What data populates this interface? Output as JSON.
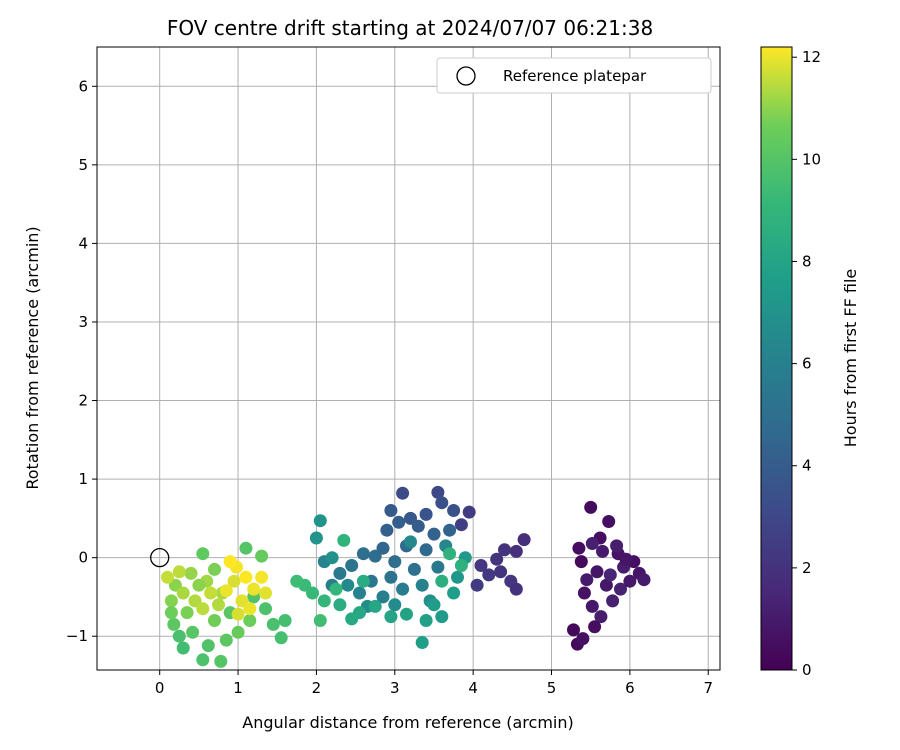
{
  "chart_data": {
    "type": "scatter",
    "title": "FOV centre drift starting at 2024/07/07 06:21:38",
    "xlabel": "Angular distance from reference (arcmin)",
    "ylabel": "Rotation from reference (arcmin)",
    "xlim": [
      -0.8,
      7.15
    ],
    "ylim": [
      -1.43,
      6.5
    ],
    "x_ticks": [
      0,
      1,
      2,
      3,
      4,
      5,
      6,
      7
    ],
    "y_ticks": [
      -1,
      0,
      1,
      2,
      3,
      4,
      5,
      6
    ],
    "grid": true,
    "legend": {
      "position": "top-right",
      "entries": [
        "Reference platepar"
      ]
    },
    "reference_point": {
      "x": 0,
      "y": 0,
      "label": "Reference platepar"
    },
    "colorbar": {
      "label": "Hours from first FF file",
      "range": [
        0,
        12.2
      ],
      "ticks": [
        0,
        2,
        4,
        6,
        8,
        10,
        12
      ],
      "colormap": "viridis"
    },
    "series": [
      {
        "color_value": "hours",
        "points": [
          [
            5.38,
            -0.05,
            0.3
          ],
          [
            5.5,
            0.64,
            0.4
          ],
          [
            5.62,
            0.25,
            0.5
          ],
          [
            5.73,
            0.46,
            0.6
          ],
          [
            5.85,
            0.05,
            0.7
          ],
          [
            5.58,
            -0.18,
            0.8
          ],
          [
            5.7,
            -0.35,
            0.9
          ],
          [
            5.45,
            -0.28,
            1.0
          ],
          [
            5.92,
            -0.12,
            1.1
          ],
          [
            6.05,
            -0.05,
            0.6
          ],
          [
            6.12,
            -0.2,
            0.8
          ],
          [
            6.18,
            -0.28,
            1.0
          ],
          [
            5.35,
            0.12,
            0.5
          ],
          [
            5.42,
            -0.45,
            0.7
          ],
          [
            5.52,
            -0.62,
            0.9
          ],
          [
            5.63,
            -0.75,
            1.1
          ],
          [
            5.78,
            -0.55,
            1.2
          ],
          [
            5.88,
            -0.4,
            1.3
          ],
          [
            5.28,
            -0.92,
            0.3
          ],
          [
            5.33,
            -1.1,
            0.4
          ],
          [
            5.55,
            -0.88,
            0.5
          ],
          [
            5.4,
            -1.03,
            0.6
          ],
          [
            5.95,
            -0.02,
            0.8
          ],
          [
            5.65,
            0.08,
            1.0
          ],
          [
            5.52,
            0.18,
            1.2
          ],
          [
            5.75,
            -0.22,
            1.4
          ],
          [
            5.83,
            0.15,
            1.1
          ],
          [
            6.0,
            -0.3,
            0.9
          ],
          [
            4.65,
            0.23,
            1.8
          ],
          [
            4.55,
            0.08,
            1.9
          ],
          [
            4.4,
            0.1,
            2.0
          ],
          [
            4.3,
            -0.02,
            2.1
          ],
          [
            4.48,
            -0.3,
            2.2
          ],
          [
            4.55,
            -0.4,
            2.0
          ],
          [
            4.2,
            -0.22,
            2.3
          ],
          [
            4.05,
            -0.35,
            2.4
          ],
          [
            3.95,
            0.58,
            2.5
          ],
          [
            3.85,
            0.42,
            2.6
          ],
          [
            4.1,
            -0.1,
            2.2
          ],
          [
            4.35,
            -0.18,
            2.1
          ],
          [
            3.55,
            0.83,
            3.0
          ],
          [
            3.1,
            0.82,
            3.2
          ],
          [
            3.6,
            0.7,
            3.4
          ],
          [
            3.75,
            0.6,
            3.5
          ],
          [
            3.4,
            0.55,
            3.6
          ],
          [
            3.2,
            0.5,
            3.8
          ],
          [
            2.95,
            0.6,
            3.9
          ],
          [
            3.3,
            0.4,
            4.0
          ],
          [
            3.05,
            0.45,
            4.1
          ],
          [
            2.9,
            0.35,
            4.2
          ],
          [
            3.5,
            0.3,
            4.3
          ],
          [
            3.7,
            0.35,
            4.4
          ],
          [
            2.85,
            0.12,
            4.5
          ],
          [
            3.15,
            0.15,
            4.6
          ],
          [
            3.4,
            0.1,
            4.7
          ],
          [
            2.75,
            0.02,
            4.8
          ],
          [
            3.0,
            -0.05,
            4.9
          ],
          [
            2.6,
            0.05,
            5.0
          ],
          [
            3.25,
            -0.15,
            5.1
          ],
          [
            2.95,
            -0.25,
            5.2
          ],
          [
            2.45,
            -0.1,
            5.3
          ],
          [
            2.7,
            -0.3,
            5.4
          ],
          [
            3.55,
            -0.12,
            5.5
          ],
          [
            2.3,
            -0.2,
            5.6
          ],
          [
            3.1,
            -0.4,
            5.7
          ],
          [
            2.2,
            -0.35,
            5.8
          ],
          [
            2.85,
            -0.5,
            5.9
          ],
          [
            3.35,
            -0.35,
            6.0
          ],
          [
            2.55,
            -0.45,
            6.1
          ],
          [
            2.1,
            -0.05,
            6.2
          ],
          [
            3.65,
            0.15,
            6.3
          ],
          [
            3.2,
            0.2,
            6.4
          ],
          [
            2.4,
            -0.35,
            6.5
          ],
          [
            3.0,
            -0.6,
            6.6
          ],
          [
            2.65,
            -0.62,
            6.7
          ],
          [
            3.45,
            -0.55,
            6.8
          ],
          [
            2.2,
            0.0,
            6.9
          ],
          [
            2.05,
            0.47,
            7.0
          ],
          [
            2.0,
            0.25,
            7.1
          ],
          [
            3.8,
            -0.25,
            7.2
          ],
          [
            3.9,
            0.0,
            7.3
          ],
          [
            3.6,
            -0.75,
            7.4
          ],
          [
            3.5,
            -0.6,
            7.5
          ],
          [
            3.75,
            -0.45,
            7.6
          ],
          [
            3.35,
            -1.08,
            7.7
          ],
          [
            3.4,
            -0.8,
            7.8
          ],
          [
            3.15,
            -0.72,
            7.9
          ],
          [
            2.95,
            -0.75,
            8.0
          ],
          [
            2.75,
            -0.62,
            8.1
          ],
          [
            2.55,
            -0.7,
            8.2
          ],
          [
            2.45,
            -0.78,
            8.3
          ],
          [
            2.6,
            -0.3,
            8.4
          ],
          [
            2.3,
            -0.6,
            8.5
          ],
          [
            3.6,
            -0.3,
            8.6
          ],
          [
            3.85,
            -0.1,
            8.7
          ],
          [
            3.7,
            0.05,
            8.8
          ],
          [
            2.35,
            0.22,
            8.9
          ],
          [
            2.25,
            -0.4,
            9.0
          ],
          [
            2.1,
            -0.55,
            9.1
          ],
          [
            1.95,
            -0.45,
            9.2
          ],
          [
            1.85,
            -0.35,
            9.3
          ],
          [
            1.75,
            -0.3,
            9.4
          ],
          [
            2.05,
            -0.8,
            9.5
          ],
          [
            1.6,
            -0.8,
            9.6
          ],
          [
            1.55,
            -1.02,
            9.6
          ],
          [
            1.45,
            -0.85,
            9.7
          ],
          [
            1.35,
            -0.65,
            9.8
          ],
          [
            1.2,
            -0.5,
            9.9
          ],
          [
            1.1,
            0.12,
            10.0
          ],
          [
            0.9,
            -0.7,
            10.1
          ],
          [
            0.85,
            -1.05,
            10.2
          ],
          [
            0.78,
            -1.32,
            10.0
          ],
          [
            0.55,
            -1.3,
            9.8
          ],
          [
            0.3,
            -1.15,
            9.5
          ],
          [
            0.25,
            -1.0,
            9.7
          ],
          [
            0.62,
            -1.12,
            9.9
          ],
          [
            0.42,
            -0.95,
            10.1
          ],
          [
            0.18,
            -0.85,
            10.2
          ],
          [
            0.55,
            0.05,
            10.3
          ],
          [
            1.3,
            0.02,
            10.4
          ],
          [
            1.0,
            -0.95,
            10.5
          ],
          [
            1.15,
            -0.8,
            10.6
          ],
          [
            0.7,
            -0.8,
            10.7
          ],
          [
            0.35,
            -0.7,
            10.8
          ],
          [
            0.15,
            -0.55,
            10.9
          ],
          [
            0.2,
            -0.35,
            11.0
          ],
          [
            0.4,
            -0.2,
            11.1
          ],
          [
            0.6,
            -0.3,
            11.2
          ],
          [
            0.8,
            -0.45,
            11.3
          ],
          [
            0.45,
            -0.55,
            11.4
          ],
          [
            0.25,
            -0.18,
            11.5
          ],
          [
            0.1,
            -0.25,
            11.6
          ],
          [
            0.55,
            -0.65,
            11.5
          ],
          [
            0.75,
            -0.6,
            11.4
          ],
          [
            0.95,
            -0.3,
            11.8
          ],
          [
            1.05,
            -0.55,
            11.9
          ],
          [
            1.2,
            -0.4,
            12.0
          ],
          [
            1.3,
            -0.25,
            12.1
          ],
          [
            0.98,
            -0.12,
            12.1
          ],
          [
            1.15,
            -0.65,
            12.0
          ],
          [
            0.9,
            -0.05,
            12.2
          ],
          [
            1.35,
            -0.45,
            11.9
          ],
          [
            1.1,
            -0.25,
            12.2
          ],
          [
            0.85,
            -0.42,
            12.0
          ],
          [
            1.0,
            -0.72,
            11.8
          ],
          [
            0.65,
            -0.45,
            11.6
          ],
          [
            0.3,
            -0.45,
            11.3
          ],
          [
            0.5,
            -0.35,
            11.0
          ],
          [
            0.7,
            -0.15,
            10.8
          ],
          [
            0.15,
            -0.7,
            10.6
          ]
        ]
      }
    ]
  }
}
